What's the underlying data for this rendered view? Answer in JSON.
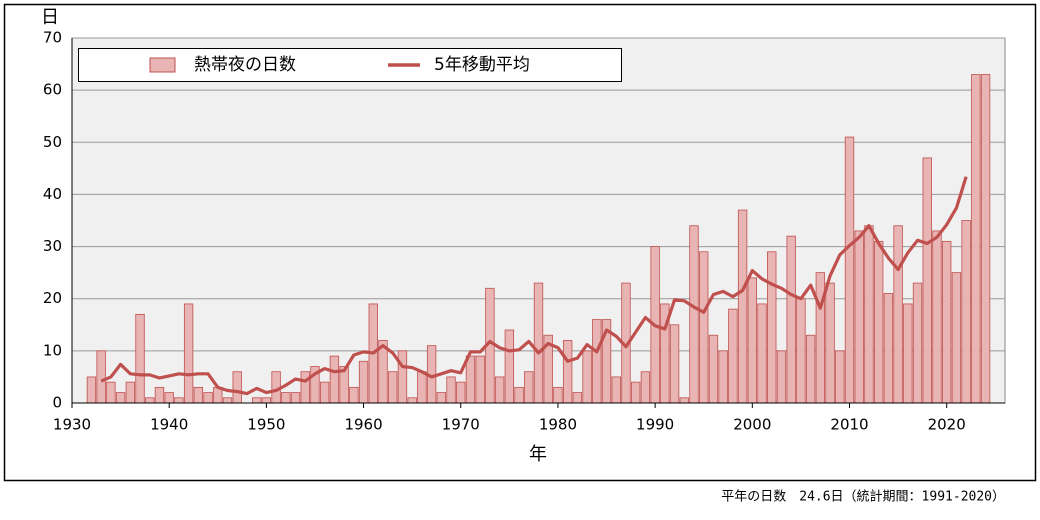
{
  "chart_data": {
    "type": "bar",
    "y_label": "日",
    "x_label": "年",
    "footnote": "平年の日数　24.6日（統計期間：1991-2020）",
    "x": [
      1932,
      1933,
      1934,
      1935,
      1936,
      1937,
      1938,
      1939,
      1940,
      1941,
      1942,
      1943,
      1944,
      1945,
      1946,
      1947,
      1948,
      1949,
      1950,
      1951,
      1952,
      1953,
      1954,
      1955,
      1956,
      1957,
      1958,
      1959,
      1960,
      1961,
      1962,
      1963,
      1964,
      1965,
      1966,
      1967,
      1968,
      1969,
      1970,
      1971,
      1972,
      1973,
      1974,
      1975,
      1976,
      1977,
      1978,
      1979,
      1980,
      1981,
      1982,
      1983,
      1984,
      1985,
      1986,
      1987,
      1988,
      1989,
      1990,
      1991,
      1992,
      1993,
      1994,
      1995,
      1996,
      1997,
      1998,
      1999,
      2000,
      2001,
      2002,
      2003,
      2004,
      2005,
      2006,
      2007,
      2008,
      2009,
      2010,
      2011,
      2012,
      2013,
      2014,
      2015,
      2016,
      2017,
      2018,
      2019,
      2020,
      2021,
      2022,
      2023,
      2024
    ],
    "series": [
      {
        "name": "熱帯夜の日数",
        "type": "bar",
        "color": "#e8b4b4",
        "edge_color": "#c0504d",
        "values": [
          5,
          10,
          4,
          2,
          4,
          17,
          1,
          3,
          2,
          1,
          19,
          3,
          2,
          3,
          1,
          6,
          0,
          1,
          1,
          6,
          2,
          2,
          6,
          7,
          4,
          9,
          7,
          3,
          8,
          19,
          12,
          6,
          10,
          1,
          6,
          11,
          2,
          5,
          4,
          9,
          9,
          22,
          5,
          14,
          3,
          6,
          23,
          13,
          3,
          12,
          2,
          10,
          16,
          16,
          5,
          23,
          4,
          6,
          30,
          19,
          15,
          1,
          34,
          29,
          13,
          10,
          18,
          37,
          24,
          19,
          29,
          10,
          32,
          20,
          13,
          25,
          23,
          10,
          51,
          33,
          34,
          31,
          21,
          34,
          19,
          23,
          47,
          33,
          31,
          25,
          35,
          63,
          63
        ]
      },
      {
        "name": "5年移動平均",
        "type": "line",
        "color": "#c0504d",
        "values": [
          null,
          4.2,
          5.0,
          7.4,
          5.6,
          5.4,
          5.4,
          4.8,
          5.2,
          5.6,
          5.4,
          5.6,
          5.6,
          3.0,
          2.4,
          2.2,
          1.8,
          2.8,
          2.0,
          2.4,
          3.4,
          4.6,
          4.2,
          5.6,
          6.6,
          6.0,
          6.2,
          9.2,
          9.8,
          9.6,
          11.0,
          9.6,
          7.0,
          6.8,
          6.0,
          5.0,
          5.6,
          6.2,
          5.8,
          9.8,
          9.8,
          11.8,
          10.6,
          10.0,
          10.2,
          11.8,
          9.6,
          11.4,
          10.6,
          8.0,
          8.6,
          11.2,
          9.8,
          14.0,
          12.8,
          10.8,
          13.6,
          16.4,
          14.8,
          14.2,
          19.8,
          19.6,
          18.4,
          17.4,
          20.8,
          21.4,
          20.4,
          21.6,
          25.4,
          23.8,
          22.8,
          22.0,
          20.8,
          20.0,
          22.6,
          18.2,
          24.4,
          28.4,
          30.2,
          31.8,
          34.0,
          30.6,
          27.8,
          25.6,
          28.8,
          31.2,
          30.6,
          31.8,
          34.2,
          37.4,
          43.4,
          null,
          null
        ]
      }
    ],
    "xlim": [
      1930,
      2026
    ],
    "xticks": [
      1930,
      1940,
      1950,
      1960,
      1970,
      1980,
      1990,
      2000,
      2010,
      2020
    ],
    "ylim": [
      0,
      70
    ],
    "yticks": [
      0,
      10,
      20,
      30,
      40,
      50,
      60,
      70
    ],
    "grid": true,
    "legend": "top"
  }
}
